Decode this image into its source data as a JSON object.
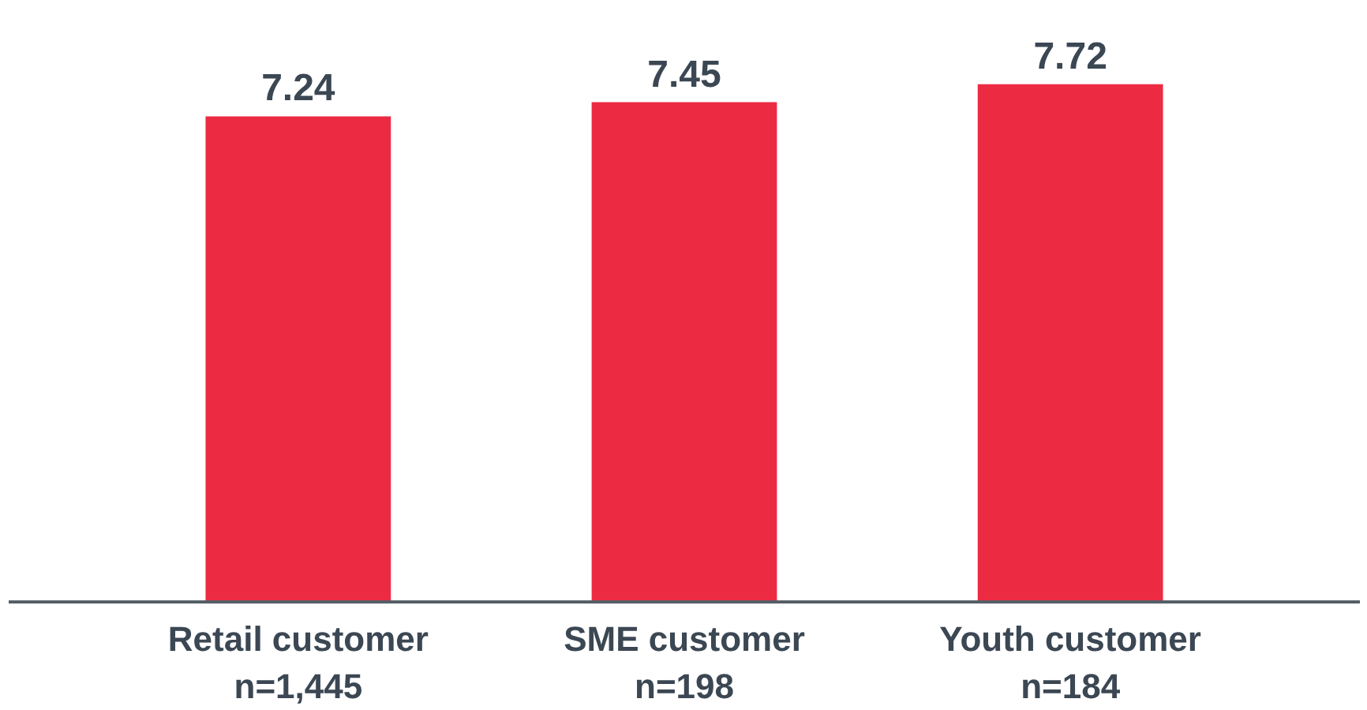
{
  "chart_data": {
    "type": "bar",
    "categories": [
      "Retail customer\nn=1,445",
      "SME customer\nn=198",
      "Youth customer\nn=184"
    ],
    "values": [
      7.24,
      7.45,
      7.72
    ],
    "color": "#ec2b42",
    "data_labels": true,
    "grid": false
  }
}
